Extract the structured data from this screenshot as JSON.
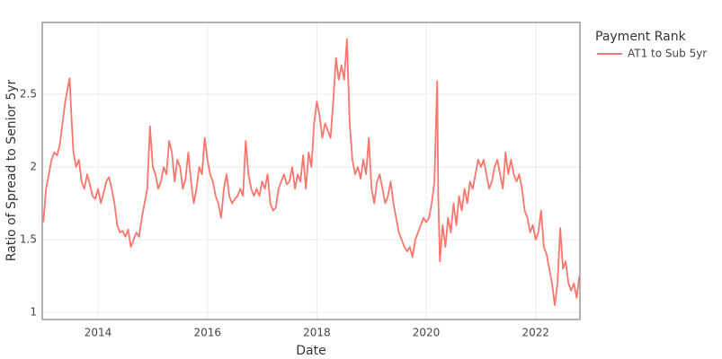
{
  "chart_data": {
    "type": "line",
    "x_label": "Date",
    "y_label": "Ratio of Spread to Senior 5yr",
    "legend_title": "Payment Rank",
    "legend_position": "right",
    "grid": true,
    "xlim": [
      2012.98,
      2022.81
    ],
    "xticks": [
      2014,
      2016,
      2018,
      2020,
      2022
    ],
    "ylim": [
      0.951,
      2.994
    ],
    "yticks": [
      1,
      1.5,
      2,
      2.5
    ],
    "x": [
      2013.0,
      2013.05,
      2013.1,
      2013.15,
      2013.2,
      2013.25,
      2013.3,
      2013.35,
      2013.4,
      2013.45,
      2013.48,
      2013.52,
      2013.55,
      2013.6,
      2013.65,
      2013.7,
      2013.75,
      2013.8,
      2013.85,
      2013.9,
      2013.95,
      2014.0,
      2014.05,
      2014.1,
      2014.15,
      2014.2,
      2014.25,
      2014.3,
      2014.35,
      2014.4,
      2014.45,
      2014.5,
      2014.55,
      2014.6,
      2014.65,
      2014.7,
      2014.75,
      2014.8,
      2014.85,
      2014.9,
      2014.95,
      2015.0,
      2015.05,
      2015.1,
      2015.15,
      2015.2,
      2015.25,
      2015.3,
      2015.35,
      2015.4,
      2015.45,
      2015.5,
      2015.55,
      2015.6,
      2015.65,
      2015.7,
      2015.75,
      2015.8,
      2015.85,
      2015.9,
      2015.95,
      2016.0,
      2016.05,
      2016.1,
      2016.15,
      2016.2,
      2016.25,
      2016.3,
      2016.35,
      2016.4,
      2016.45,
      2016.5,
      2016.55,
      2016.6,
      2016.65,
      2016.7,
      2016.75,
      2016.8,
      2016.85,
      2016.9,
      2016.95,
      2017.0,
      2017.05,
      2017.1,
      2017.15,
      2017.2,
      2017.25,
      2017.3,
      2017.35,
      2017.4,
      2017.45,
      2017.5,
      2017.55,
      2017.6,
      2017.65,
      2017.7,
      2017.75,
      2017.8,
      2017.85,
      2017.9,
      2017.95,
      2018.0,
      2018.05,
      2018.1,
      2018.15,
      2018.2,
      2018.25,
      2018.3,
      2018.35,
      2018.4,
      2018.45,
      2018.5,
      2018.55,
      2018.6,
      2018.65,
      2018.7,
      2018.75,
      2018.8,
      2018.85,
      2018.9,
      2018.95,
      2019.0,
      2019.05,
      2019.1,
      2019.15,
      2019.2,
      2019.25,
      2019.3,
      2019.35,
      2019.4,
      2019.45,
      2019.5,
      2019.55,
      2019.6,
      2019.65,
      2019.7,
      2019.75,
      2019.8,
      2019.85,
      2019.9,
      2019.95,
      2020.0,
      2020.05,
      2020.1,
      2020.15,
      2020.2,
      2020.22,
      2020.25,
      2020.3,
      2020.35,
      2020.4,
      2020.45,
      2020.5,
      2020.55,
      2020.6,
      2020.65,
      2020.7,
      2020.75,
      2020.8,
      2020.85,
      2020.9,
      2020.95,
      2021.0,
      2021.05,
      2021.1,
      2021.15,
      2021.2,
      2021.25,
      2021.3,
      2021.35,
      2021.4,
      2021.45,
      2021.5,
      2021.55,
      2021.6,
      2021.65,
      2021.7,
      2021.75,
      2021.8,
      2021.85,
      2021.9,
      2021.95,
      2022.0,
      2022.05,
      2022.1,
      2022.15,
      2022.2,
      2022.25,
      2022.3,
      2022.35,
      2022.4,
      2022.45,
      2022.5,
      2022.55,
      2022.6,
      2022.65,
      2022.7,
      2022.75,
      2022.8
    ],
    "series": [
      {
        "name": "AT1 to Sub 5yr",
        "color": "#f8766d",
        "values": [
          1.62,
          1.85,
          1.95,
          2.05,
          2.1,
          2.08,
          2.15,
          2.3,
          2.45,
          2.55,
          2.61,
          2.3,
          2.1,
          2.0,
          2.05,
          1.9,
          1.85,
          1.95,
          1.88,
          1.8,
          1.78,
          1.85,
          1.75,
          1.82,
          1.9,
          1.93,
          1.85,
          1.75,
          1.6,
          1.55,
          1.56,
          1.52,
          1.57,
          1.45,
          1.5,
          1.55,
          1.52,
          1.65,
          1.75,
          1.85,
          2.28,
          2.0,
          1.95,
          1.85,
          1.9,
          2.0,
          1.95,
          2.18,
          2.1,
          1.9,
          2.05,
          2.0,
          1.85,
          1.92,
          2.1,
          1.9,
          1.75,
          1.85,
          2.0,
          1.95,
          2.2,
          2.05,
          1.95,
          1.9,
          1.8,
          1.75,
          1.65,
          1.85,
          1.95,
          1.8,
          1.75,
          1.78,
          1.8,
          1.85,
          1.8,
          2.18,
          1.95,
          1.85,
          1.8,
          1.85,
          1.8,
          1.9,
          1.85,
          1.95,
          1.75,
          1.7,
          1.72,
          1.85,
          1.9,
          1.95,
          1.88,
          1.9,
          2.0,
          1.85,
          1.95,
          1.9,
          2.08,
          1.85,
          2.1,
          2.0,
          2.3,
          2.45,
          2.35,
          2.2,
          2.3,
          2.25,
          2.2,
          2.45,
          2.75,
          2.6,
          2.7,
          2.6,
          2.88,
          2.3,
          2.05,
          1.95,
          2.0,
          1.92,
          2.05,
          1.95,
          2.2,
          1.85,
          1.75,
          1.9,
          1.95,
          1.85,
          1.75,
          1.8,
          1.9,
          1.75,
          1.65,
          1.55,
          1.5,
          1.45,
          1.42,
          1.45,
          1.38,
          1.5,
          1.55,
          1.6,
          1.65,
          1.62,
          1.65,
          1.75,
          1.9,
          2.59,
          1.8,
          1.35,
          1.6,
          1.45,
          1.65,
          1.55,
          1.75,
          1.6,
          1.8,
          1.7,
          1.85,
          1.75,
          1.9,
          1.85,
          1.95,
          2.05,
          2.0,
          2.05,
          1.95,
          1.85,
          1.9,
          2.0,
          2.05,
          1.95,
          1.85,
          2.1,
          1.95,
          2.05,
          1.95,
          1.9,
          1.95,
          1.85,
          1.7,
          1.65,
          1.55,
          1.6,
          1.5,
          1.55,
          1.7,
          1.45,
          1.4,
          1.3,
          1.2,
          1.05,
          1.2,
          1.58,
          1.3,
          1.35,
          1.2,
          1.15,
          1.2,
          1.1,
          1.25
        ]
      }
    ]
  }
}
